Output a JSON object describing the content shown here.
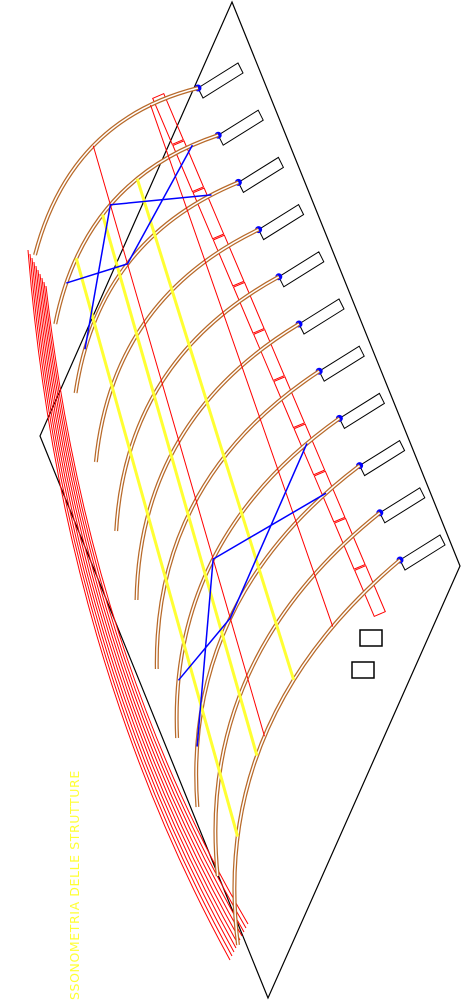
{
  "title": "SSONOMETRIA DELLE STRUTTURE"
}
